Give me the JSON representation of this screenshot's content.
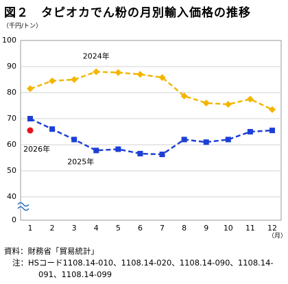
{
  "chart_data": {
    "type": "line",
    "title": "図２　タピオカでん粉の月別輸入価格の推移",
    "y_unit": "（千円/トン）",
    "x_unit": "（月）",
    "categories": [
      "1",
      "2",
      "3",
      "4",
      "5",
      "6",
      "7",
      "8",
      "9",
      "10",
      "11",
      "12"
    ],
    "series": [
      {
        "name": "2024年",
        "color": "#f2b600",
        "marker": "diamond",
        "values": [
          81.5,
          84.5,
          85,
          88,
          87.7,
          87,
          85.8,
          78.7,
          76,
          75.5,
          77.5,
          73.5
        ]
      },
      {
        "name": "2025年",
        "color": "#1c3fd6",
        "marker": "square",
        "values": [
          70,
          66,
          62,
          57.8,
          58.3,
          56.6,
          56.3,
          62,
          61,
          62,
          65,
          65.5
        ]
      },
      {
        "name": "2026年",
        "color": "#e8141a",
        "marker": "circle",
        "values": [
          65.5,
          null,
          null,
          null,
          null,
          null,
          null,
          null,
          null,
          null,
          null,
          null
        ]
      }
    ],
    "ylim": [
      40,
      100
    ],
    "yticks": [
      0,
      40,
      50,
      60,
      70,
      80,
      90,
      100
    ],
    "grid": true,
    "axis_break": true,
    "source": "資料：財務省「貿易統計」",
    "note": "注：HSコード1108.14-010、1108.14-020、1108.14-090、1108.14-091、1108.14-099"
  }
}
